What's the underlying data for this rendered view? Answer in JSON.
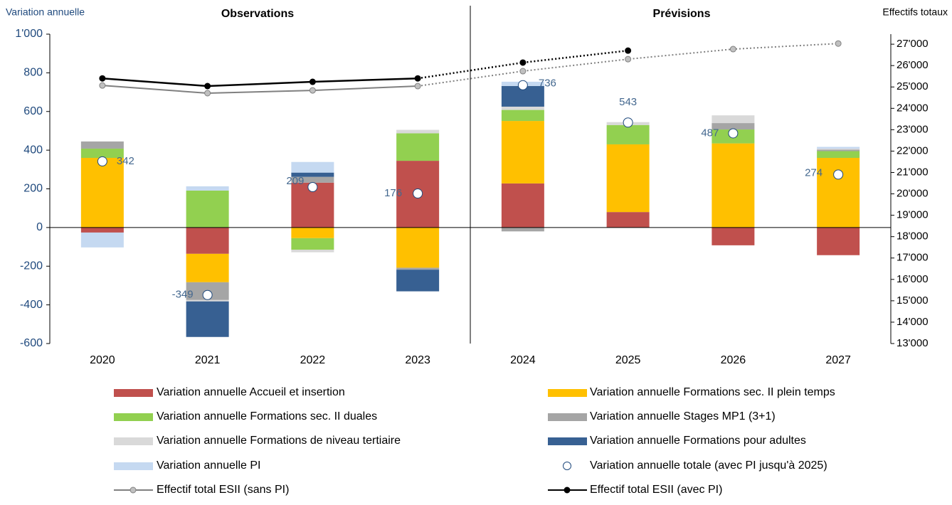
{
  "chart_data": {
    "type": "bar",
    "stacked": true,
    "annotations": [
      "Observations",
      "Prévisions"
    ],
    "forecast_start": "2024",
    "ylabel": "Variation annuelle",
    "y2label": "Effectifs totaux",
    "categories": [
      "2020",
      "2021",
      "2022",
      "2023",
      "2024",
      "2025",
      "2026",
      "2027"
    ],
    "ylim": [
      -600,
      1000
    ],
    "yticks": [
      -600,
      -400,
      -200,
      0,
      200,
      400,
      600,
      800,
      {
        "value": 1000,
        "label": "1'000"
      }
    ],
    "y2lim": [
      13000,
      27470
    ],
    "y2ticks": [
      {
        "value": 13000,
        "label": "13'000"
      },
      {
        "value": 14000,
        "label": "14'000"
      },
      {
        "value": 15000,
        "label": "15'000"
      },
      {
        "value": 16000,
        "label": "16'000"
      },
      {
        "value": 17000,
        "label": "17'000"
      },
      {
        "value": 18000,
        "label": "18'000"
      },
      {
        "value": 19000,
        "label": "19'000"
      },
      {
        "value": 20000,
        "label": "20'000"
      },
      {
        "value": 21000,
        "label": "21'000"
      },
      {
        "value": 22000,
        "label": "22'000"
      },
      {
        "value": 23000,
        "label": "23'000"
      },
      {
        "value": 24000,
        "label": "24'000"
      },
      {
        "value": 25000,
        "label": "25'000"
      },
      {
        "value": 26000,
        "label": "26'000"
      },
      {
        "value": 27000,
        "label": "27'000"
      }
    ],
    "series": [
      {
        "name": "Variation annuelle Accueil et insertion",
        "type": "bar",
        "color": "#c0504d",
        "values": [
          -26,
          -136,
          232,
          345,
          228,
          80,
          -92,
          -143
        ]
      },
      {
        "name": "Variation annuelle Formations sec. II plein temps",
        "type": "bar",
        "color": "#ffc000",
        "values": [
          360,
          -147,
          -55,
          -208,
          323,
          350,
          435,
          360
        ]
      },
      {
        "name": "Variation annuelle Formations sec. II duales",
        "type": "bar",
        "color": "#92d050",
        "values": [
          48,
          191,
          -60,
          142,
          57,
          100,
          72,
          35
        ]
      },
      {
        "name": "Variation annuelle Stages MP1 (3+1)",
        "type": "bar",
        "color": "#a5a5a5",
        "values": [
          37,
          -92,
          30,
          -10,
          -20,
          0,
          33,
          8
        ]
      },
      {
        "name": "Variation annuelle Formations de niveau tertiaire",
        "type": "bar",
        "color": "#d9d9d9",
        "values": [
          0,
          -7,
          -13,
          18,
          17,
          15,
          40,
          5
        ]
      },
      {
        "name": "Variation annuelle Formations pour adultes",
        "type": "bar",
        "color": "#376092",
        "values": [
          0,
          -184,
          22,
          -112,
          107,
          0,
          0,
          0
        ]
      },
      {
        "name": "Variation annuelle PI",
        "type": "bar",
        "color": "#c5d9f1",
        "values": [
          -77,
          22,
          55,
          0,
          22,
          0,
          0,
          9
        ]
      },
      {
        "name": "Variation annuelle totale (avec PI jusqu'à 2025)",
        "type": "scatter",
        "color": "#1f497d",
        "values": [
          342,
          -349,
          209,
          176,
          736,
          543,
          487,
          274
        ]
      },
      {
        "name": "Effectif total ESII (sans PI)",
        "type": "line",
        "axis": "y2",
        "color": "#808080",
        "values": [
          25070,
          24710,
          24840,
          25040,
          25740,
          26300,
          26770,
          27030
        ]
      },
      {
        "name": "Effectif total ESII (avec PI)",
        "type": "line",
        "axis": "y2",
        "color": "#000000",
        "values": [
          25400,
          25040,
          25240,
          25400,
          26140,
          26700,
          null,
          null
        ]
      }
    ]
  }
}
